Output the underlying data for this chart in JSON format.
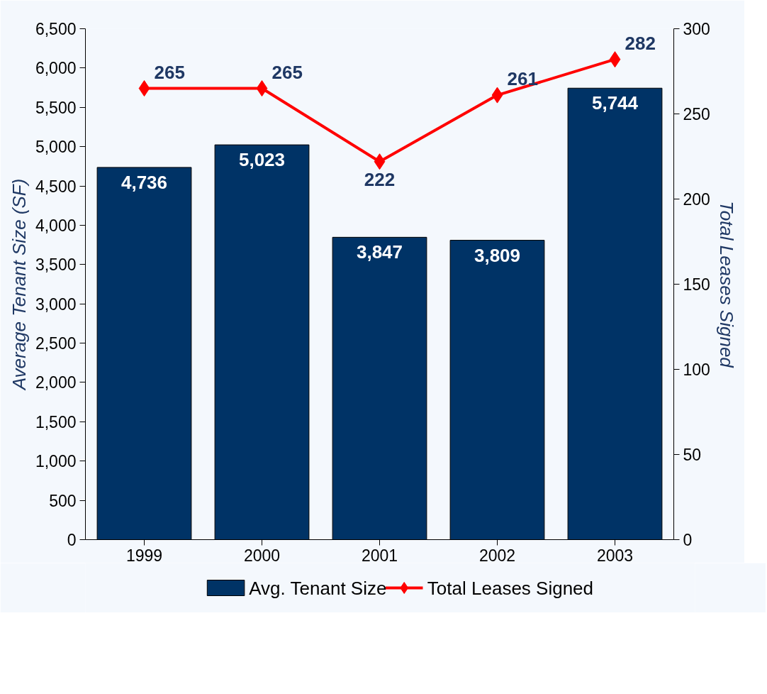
{
  "chart_data": {
    "type": "bar",
    "ylabel": "Average Tenant Size (SF)",
    "y2label": "Total Leases Signed",
    "categories": [
      "1999",
      "2000",
      "2001",
      "2002",
      "2003"
    ],
    "series": [
      {
        "name": "Avg. Tenant Size",
        "color": "#003366",
        "values": [
          4736,
          5023,
          3847,
          3809,
          5744
        ],
        "value_labels": [
          "4,736",
          "5,023",
          "3,847",
          "3,809",
          "5,744"
        ]
      },
      {
        "name": "Total Leases Signed",
        "type": "line",
        "axis": "y2",
        "color": "#ff0000",
        "marker": "diamond",
        "values": [
          265,
          265,
          222,
          261,
          282
        ],
        "value_labels": [
          "265",
          "265",
          "222",
          "261",
          "282"
        ]
      }
    ],
    "ylim": [
      0,
      6500
    ],
    "yticks": [
      0,
      {
        "value": 500,
        "label": "500"
      },
      {
        "value": 1000,
        "label": "1,000"
      },
      {
        "value": 1500,
        "label": "1,500"
      },
      {
        "value": 2000,
        "label": "2,000"
      },
      {
        "value": 2500,
        "label": "2,500"
      },
      {
        "value": 3000,
        "label": "3,000"
      },
      {
        "value": 3500,
        "label": "3,500"
      },
      {
        "value": 4000,
        "label": "4,000"
      },
      {
        "value": 4500,
        "label": "4,500"
      },
      {
        "value": 5000,
        "label": "5,000"
      },
      {
        "value": 5500,
        "label": "5,500"
      },
      {
        "value": 6000,
        "label": "6,000"
      },
      {
        "value": 6500,
        "label": "6,500"
      }
    ],
    "y2lim": [
      0,
      300
    ],
    "y2ticks": [
      0,
      50,
      100,
      150,
      200,
      250,
      300
    ],
    "grid": false,
    "legend": "bottom"
  }
}
